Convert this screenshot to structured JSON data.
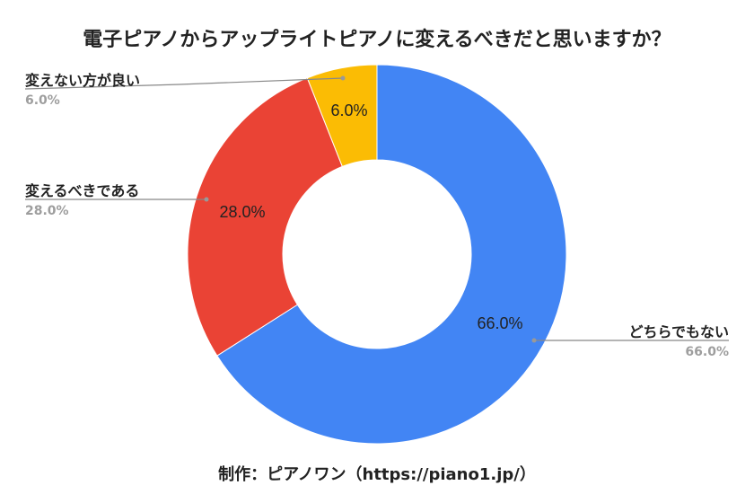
{
  "title": "電子ピアノからアップライトピアノに変えるべきだと思いますか？",
  "footer": "制作：ピアノワン（https://piano1.jp/）",
  "colors": {
    "blue": "#4285f4",
    "red": "#ea4335",
    "yellow": "#fbbc04"
  },
  "labels": {
    "no_change": {
      "name": "変えない方が良い",
      "pct": "6.0%"
    },
    "should_change": {
      "name": "変えるべきである",
      "pct": "28.0%"
    },
    "neither": {
      "name": "どちらでもない",
      "pct": "66.0%"
    }
  },
  "slice_labels": {
    "yellow": "6.0%",
    "red": "28.0%",
    "blue": "66.0%"
  },
  "chart_data": {
    "type": "pie",
    "subtype": "donut",
    "title": "電子ピアノからアップライトピアノに変えるべきだと思いますか？",
    "categories": [
      "どちらでもない",
      "変えるべきである",
      "変えない方が良い"
    ],
    "values": [
      66.0,
      28.0,
      6.0
    ],
    "unit": "%",
    "colors": [
      "#4285f4",
      "#ea4335",
      "#fbbc04"
    ],
    "legend": "labels-with-leader-lines",
    "source": "制作：ピアノワン（https://piano1.jp/）"
  }
}
